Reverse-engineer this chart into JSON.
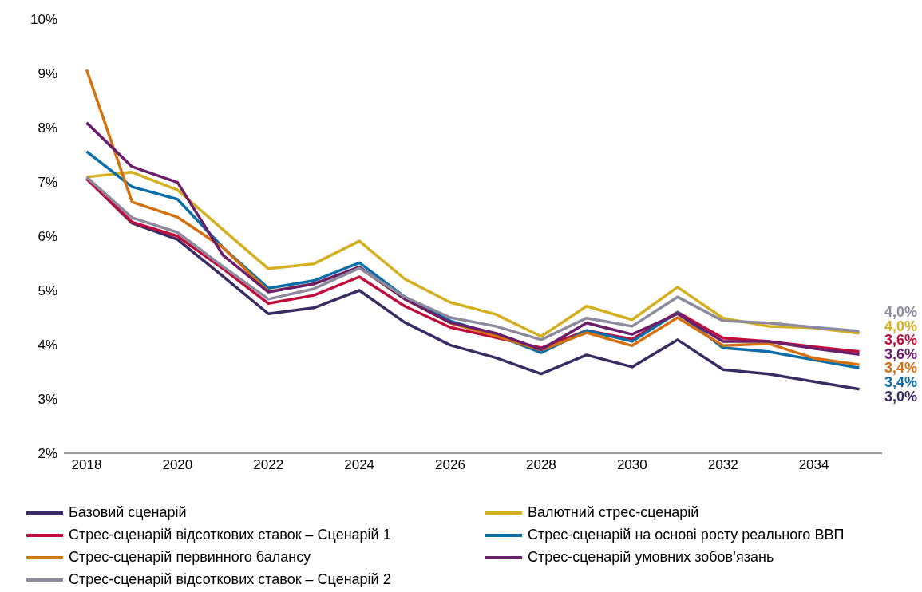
{
  "chart_data": {
    "type": "line",
    "x": [
      2018,
      2019,
      2020,
      2021,
      2022,
      2023,
      2024,
      2025,
      2026,
      2027,
      2028,
      2029,
      2030,
      2031,
      2032,
      2033,
      2034,
      2035
    ],
    "series": [
      {
        "name": "Базовий сценарій",
        "color": "#3a2b63",
        "values": [
          7.06,
          6.24,
          5.94,
          5.26,
          4.57,
          4.68,
          5.0,
          4.41,
          3.99,
          3.76,
          3.46,
          3.81,
          3.59,
          4.09,
          3.54,
          3.46,
          3.32,
          3.18
        ]
      },
      {
        "name": "Валютний стрес-сценарій",
        "color": "#d4af1f",
        "values": [
          7.09,
          7.18,
          6.85,
          6.12,
          5.4,
          5.49,
          5.91,
          5.21,
          4.78,
          4.56,
          4.15,
          4.71,
          4.46,
          5.06,
          4.49,
          4.34,
          4.31,
          4.21
        ]
      },
      {
        "name": "Стрес-сценарій відсоткових ставок – Сценарій 1",
        "color": "#c00d3c",
        "values": [
          7.06,
          6.26,
          6.0,
          5.4,
          4.76,
          4.91,
          5.25,
          4.71,
          4.32,
          4.13,
          3.94,
          4.26,
          4.1,
          4.6,
          4.12,
          4.06,
          3.96,
          3.87
        ]
      },
      {
        "name": "Стрес-сценарій на основі росту реального ВВП",
        "color": "#0a6ea8",
        "values": [
          7.56,
          6.91,
          6.68,
          5.79,
          5.04,
          5.18,
          5.51,
          4.88,
          4.44,
          4.18,
          3.85,
          4.26,
          4.06,
          4.59,
          3.94,
          3.87,
          3.72,
          3.57
        ]
      },
      {
        "name": "Стрес-сценарій первинного балансу",
        "color": "#d5700f",
        "values": [
          9.07,
          6.63,
          6.35,
          5.79,
          4.98,
          5.12,
          5.42,
          4.84,
          4.4,
          4.16,
          3.9,
          4.22,
          3.98,
          4.5,
          3.98,
          4.02,
          3.75,
          3.63
        ]
      },
      {
        "name": "Стрес-сценарій умовних зобов’язань",
        "color": "#6b1e6a",
        "values": [
          8.09,
          7.28,
          6.99,
          5.65,
          4.97,
          5.12,
          5.43,
          4.84,
          4.41,
          4.21,
          3.91,
          4.4,
          4.19,
          4.57,
          4.06,
          4.06,
          3.93,
          3.82
        ]
      },
      {
        "name": "Стрес-сценарій відсоткових ставок – Сценарій 2",
        "color": "#8e8a9e",
        "values": [
          7.09,
          6.34,
          6.07,
          5.44,
          4.84,
          5.03,
          5.41,
          4.88,
          4.5,
          4.34,
          4.09,
          4.49,
          4.34,
          4.88,
          4.44,
          4.4,
          4.32,
          4.25
        ]
      }
    ],
    "xlim": [
      2017.5,
      2035.5
    ],
    "xticks": [
      2018,
      2020,
      2022,
      2024,
      2026,
      2028,
      2030,
      2032,
      2034
    ],
    "ylim": [
      2,
      10
    ],
    "yticks": [
      {
        "value": 2,
        "label": "2%"
      },
      {
        "value": 3,
        "label": "3%"
      },
      {
        "value": 4,
        "label": "4%"
      },
      {
        "value": 5,
        "label": "5%"
      },
      {
        "value": 6,
        "label": "6%"
      },
      {
        "value": 7,
        "label": "7%"
      },
      {
        "value": 8,
        "label": "8%"
      },
      {
        "value": 9,
        "label": "9%"
      },
      {
        "value": 10,
        "label": "10%"
      }
    ],
    "annotations": [
      "4,0%",
      "4,0%",
      "3,6%",
      "3,6%",
      "3,4%",
      "3,4%",
      "3,0%"
    ],
    "grid": false,
    "legend": "bottom",
    "marker": "none",
    "line_style": "solid"
  }
}
